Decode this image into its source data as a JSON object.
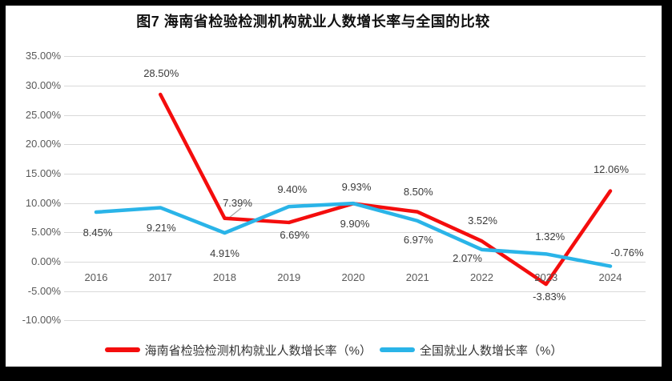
{
  "page": {
    "background_color": "#000000",
    "panel_color": "#ffffff"
  },
  "chart_data": {
    "type": "line",
    "title": "图7 海南省检验检测机构就业人数增长率与全国的比较",
    "categories": [
      "2016",
      "2017",
      "2018",
      "2019",
      "2020",
      "2021",
      "2022",
      "2023",
      "2024"
    ],
    "series": [
      {
        "name": "海南省检验检测机构就业人数增长率（%）",
        "color": "#f40d0d",
        "values": [
          null,
          28.5,
          7.39,
          6.69,
          9.9,
          8.5,
          3.52,
          -3.83,
          12.06
        ],
        "labels": [
          "",
          "28.50%",
          "7.39%",
          "6.69%",
          "9.90%",
          "8.50%",
          "3.52%",
          "-3.83%",
          "12.06%"
        ]
      },
      {
        "name": "全国就业人数增长率（%）",
        "color": "#2ab4e8",
        "values": [
          8.45,
          9.21,
          4.91,
          9.4,
          9.93,
          6.97,
          2.07,
          1.32,
          -0.76
        ],
        "labels": [
          "8.45%",
          "9.21%",
          "4.91%",
          "9.40%",
          "9.93%",
          "6.97%",
          "2.07%",
          "1.32%",
          "-0.76%"
        ]
      }
    ],
    "y_axis": {
      "min": -10,
      "max": 35,
      "step": 5,
      "tick_values": [
        35,
        30,
        25,
        20,
        15,
        10,
        5,
        0,
        -5,
        -10
      ],
      "tick_labels": [
        "35.00%",
        "30.00%",
        "25.00%",
        "20.00%",
        "15.00%",
        "10.00%",
        "5.00%",
        "0.00%",
        "-5.00%",
        "-10.00%"
      ]
    },
    "grid": true,
    "gridline_color": "#d9d9d9",
    "leader_line_color": "#a6a6a6",
    "legend_position": "bottom"
  }
}
